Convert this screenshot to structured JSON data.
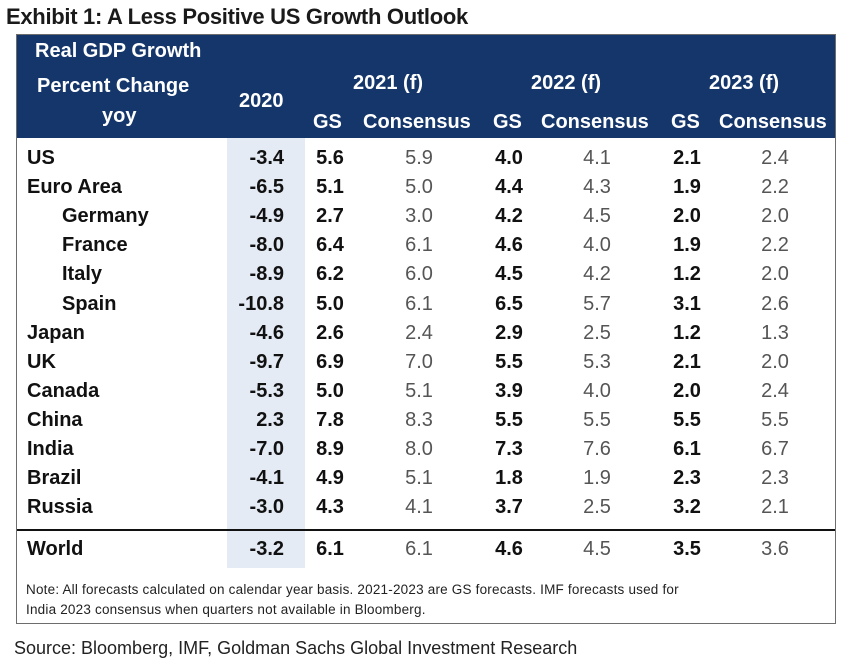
{
  "title": "Exhibit 1: A Less Positive US Growth Outlook",
  "header": {
    "row_label_1": "Real GDP Growth",
    "row_label_2": "Percent Change",
    "row_label_3": "yoy",
    "year_2020": "2020",
    "year_2021": "2021 (f)",
    "year_2022": "2022 (f)",
    "year_2023": "2023 (f)",
    "gs": "GS",
    "consensus": "Consensus"
  },
  "rows": [
    {
      "country": "US",
      "indent": false,
      "y2020": "-3.4",
      "gs2021": "5.6",
      "cons2021": "5.9",
      "gs2022": "4.0",
      "cons2022": "4.1",
      "gs2023": "2.1",
      "cons2023": "2.4"
    },
    {
      "country": "Euro Area",
      "indent": false,
      "y2020": "-6.5",
      "gs2021": "5.1",
      "cons2021": "5.0",
      "gs2022": "4.4",
      "cons2022": "4.3",
      "gs2023": "1.9",
      "cons2023": "2.2"
    },
    {
      "country": "Germany",
      "indent": true,
      "y2020": "-4.9",
      "gs2021": "2.7",
      "cons2021": "3.0",
      "gs2022": "4.2",
      "cons2022": "4.5",
      "gs2023": "2.0",
      "cons2023": "2.0"
    },
    {
      "country": "France",
      "indent": true,
      "y2020": "-8.0",
      "gs2021": "6.4",
      "cons2021": "6.1",
      "gs2022": "4.6",
      "cons2022": "4.0",
      "gs2023": "1.9",
      "cons2023": "2.2"
    },
    {
      "country": "Italy",
      "indent": true,
      "y2020": "-8.9",
      "gs2021": "6.2",
      "cons2021": "6.0",
      "gs2022": "4.5",
      "cons2022": "4.2",
      "gs2023": "1.2",
      "cons2023": "2.0"
    },
    {
      "country": "Spain",
      "indent": true,
      "y2020": "-10.8",
      "gs2021": "5.0",
      "cons2021": "6.1",
      "gs2022": "6.5",
      "cons2022": "5.7",
      "gs2023": "3.1",
      "cons2023": "2.6"
    },
    {
      "country": "Japan",
      "indent": false,
      "y2020": "-4.6",
      "gs2021": "2.6",
      "cons2021": "2.4",
      "gs2022": "2.9",
      "cons2022": "2.5",
      "gs2023": "1.2",
      "cons2023": "1.3"
    },
    {
      "country": "UK",
      "indent": false,
      "y2020": "-9.7",
      "gs2021": "6.9",
      "cons2021": "7.0",
      "gs2022": "5.5",
      "cons2022": "5.3",
      "gs2023": "2.1",
      "cons2023": "2.0"
    },
    {
      "country": "Canada",
      "indent": false,
      "y2020": "-5.3",
      "gs2021": "5.0",
      "cons2021": "5.1",
      "gs2022": "3.9",
      "cons2022": "4.0",
      "gs2023": "2.0",
      "cons2023": "2.4"
    },
    {
      "country": "China",
      "indent": false,
      "y2020": "2.3",
      "gs2021": "7.8",
      "cons2021": "8.3",
      "gs2022": "5.5",
      "cons2022": "5.5",
      "gs2023": "5.5",
      "cons2023": "5.5"
    },
    {
      "country": "India",
      "indent": false,
      "y2020": "-7.0",
      "gs2021": "8.9",
      "cons2021": "8.0",
      "gs2022": "7.3",
      "cons2022": "7.6",
      "gs2023": "6.1",
      "cons2023": "6.7"
    },
    {
      "country": "Brazil",
      "indent": false,
      "y2020": "-4.1",
      "gs2021": "4.9",
      "cons2021": "5.1",
      "gs2022": "1.8",
      "cons2022": "1.9",
      "gs2023": "2.3",
      "cons2023": "2.3"
    },
    {
      "country": "Russia",
      "indent": false,
      "y2020": "-3.0",
      "gs2021": "4.3",
      "cons2021": "4.1",
      "gs2022": "3.7",
      "cons2022": "2.5",
      "gs2023": "3.2",
      "cons2023": "2.1"
    }
  ],
  "world": {
    "country": "World",
    "y2020": "-3.2",
    "gs2021": "6.1",
    "cons2021": "6.1",
    "gs2022": "4.6",
    "cons2022": "4.5",
    "gs2023": "3.5",
    "cons2023": "3.6"
  },
  "note_line1": "Note: All forecasts calculated on calendar year basis. 2021-2023 are GS forecasts. IMF forecasts used for",
  "note_line2": "India 2023 consensus when quarters not available in Bloomberg.",
  "source": "Source: Bloomberg, IMF, Goldman Sachs Global Investment Research",
  "colors": {
    "header_bg": "#14366b",
    "col2020_bg": "#e4ebf5"
  }
}
